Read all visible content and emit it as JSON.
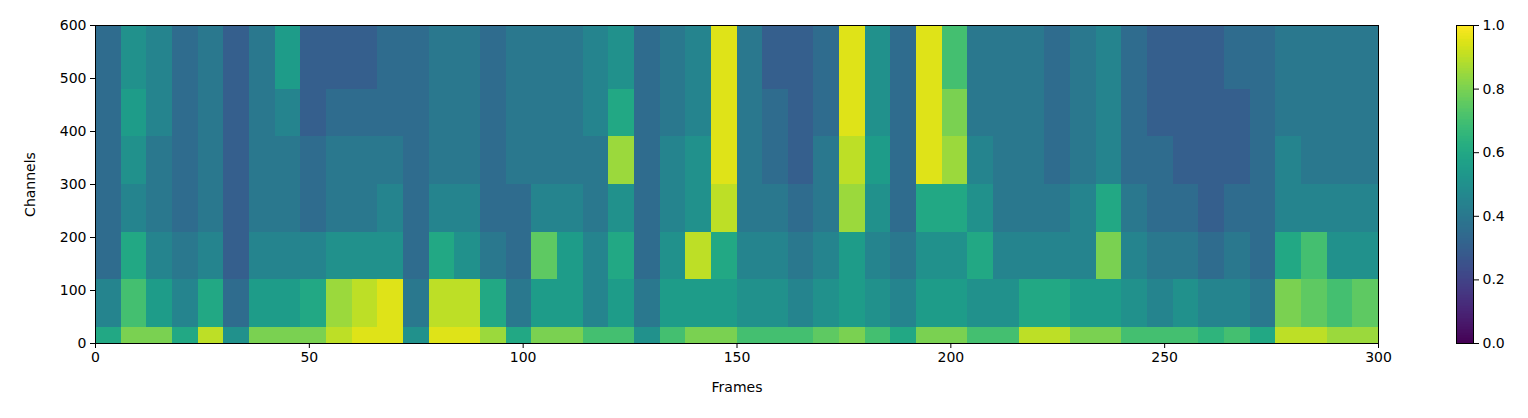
{
  "chart_data": {
    "type": "heatmap",
    "xlabel": "Frames",
    "ylabel": "Channels",
    "xlim": [
      0,
      300
    ],
    "ylim": [
      0,
      600
    ],
    "xticks": [
      0,
      50,
      100,
      150,
      200,
      250,
      300
    ],
    "yticks": [
      0,
      100,
      200,
      300,
      400,
      500,
      600
    ],
    "color": "viridis",
    "x_bins": [
      0,
      6,
      12,
      18,
      24,
      30,
      36,
      42,
      48,
      54,
      60,
      66,
      72,
      78,
      84,
      90,
      96,
      102,
      108,
      114,
      120,
      126,
      132,
      138,
      144,
      150,
      156,
      162,
      168,
      174,
      180,
      186,
      192,
      198,
      204,
      210,
      216,
      222,
      228,
      234,
      240,
      246,
      252,
      258,
      264,
      270,
      276,
      282,
      288,
      294,
      300
    ],
    "y_bins": [
      0,
      30,
      60,
      90,
      120,
      150,
      180,
      210,
      240,
      270,
      300,
      330,
      360,
      390,
      420,
      450,
      480,
      510,
      540,
      570,
      600
    ],
    "cells": [
      [
        0.6,
        0.8,
        0.8,
        0.6,
        0.9,
        0.5,
        0.8,
        0.8,
        0.8,
        0.9,
        0.95,
        0.95,
        0.5,
        0.95,
        0.95,
        0.85,
        0.6,
        0.8,
        0.8,
        0.7,
        0.7,
        0.5,
        0.7,
        0.8,
        0.8,
        0.7,
        0.7,
        0.7,
        0.75,
        0.8,
        0.7,
        0.6,
        0.8,
        0.8,
        0.7,
        0.7,
        0.9,
        0.9,
        0.8,
        0.8,
        0.7,
        0.7,
        0.7,
        0.65,
        0.7,
        0.6,
        0.9,
        0.9,
        0.85,
        0.85
      ],
      [
        0.45,
        0.7,
        0.55,
        0.45,
        0.6,
        0.35,
        0.55,
        0.55,
        0.6,
        0.85,
        0.9,
        0.95,
        0.4,
        0.9,
        0.9,
        0.6,
        0.4,
        0.55,
        0.55,
        0.45,
        0.55,
        0.4,
        0.55,
        0.55,
        0.55,
        0.5,
        0.5,
        0.45,
        0.5,
        0.55,
        0.5,
        0.45,
        0.55,
        0.55,
        0.5,
        0.5,
        0.6,
        0.6,
        0.55,
        0.55,
        0.5,
        0.45,
        0.5,
        0.45,
        0.45,
        0.4,
        0.8,
        0.75,
        0.7,
        0.75
      ],
      [
        0.45,
        0.7,
        0.55,
        0.45,
        0.6,
        0.35,
        0.55,
        0.55,
        0.6,
        0.85,
        0.9,
        0.95,
        0.4,
        0.9,
        0.9,
        0.6,
        0.4,
        0.55,
        0.55,
        0.45,
        0.55,
        0.4,
        0.55,
        0.55,
        0.55,
        0.5,
        0.5,
        0.45,
        0.5,
        0.55,
        0.5,
        0.45,
        0.55,
        0.55,
        0.5,
        0.5,
        0.6,
        0.6,
        0.55,
        0.55,
        0.5,
        0.45,
        0.5,
        0.45,
        0.45,
        0.4,
        0.8,
        0.75,
        0.7,
        0.75
      ],
      [
        0.45,
        0.7,
        0.55,
        0.45,
        0.6,
        0.35,
        0.55,
        0.55,
        0.6,
        0.85,
        0.9,
        0.95,
        0.4,
        0.9,
        0.9,
        0.6,
        0.4,
        0.55,
        0.55,
        0.45,
        0.55,
        0.4,
        0.55,
        0.55,
        0.55,
        0.5,
        0.5,
        0.45,
        0.5,
        0.55,
        0.5,
        0.45,
        0.55,
        0.55,
        0.5,
        0.5,
        0.6,
        0.6,
        0.55,
        0.55,
        0.5,
        0.45,
        0.5,
        0.45,
        0.45,
        0.4,
        0.8,
        0.75,
        0.7,
        0.75
      ],
      [
        0.35,
        0.6,
        0.45,
        0.4,
        0.45,
        0.3,
        0.45,
        0.45,
        0.45,
        0.5,
        0.5,
        0.5,
        0.35,
        0.6,
        0.5,
        0.4,
        0.35,
        0.75,
        0.55,
        0.45,
        0.6,
        0.35,
        0.5,
        0.9,
        0.6,
        0.45,
        0.45,
        0.4,
        0.45,
        0.55,
        0.45,
        0.4,
        0.5,
        0.5,
        0.6,
        0.45,
        0.45,
        0.45,
        0.45,
        0.8,
        0.45,
        0.4,
        0.4,
        0.35,
        0.4,
        0.35,
        0.6,
        0.7,
        0.5,
        0.5
      ],
      [
        0.35,
        0.6,
        0.45,
        0.4,
        0.45,
        0.3,
        0.45,
        0.45,
        0.45,
        0.5,
        0.5,
        0.5,
        0.35,
        0.6,
        0.5,
        0.4,
        0.35,
        0.75,
        0.55,
        0.45,
        0.6,
        0.35,
        0.5,
        0.9,
        0.6,
        0.45,
        0.45,
        0.4,
        0.45,
        0.55,
        0.45,
        0.4,
        0.5,
        0.5,
        0.6,
        0.45,
        0.45,
        0.45,
        0.45,
        0.8,
        0.45,
        0.4,
        0.4,
        0.35,
        0.4,
        0.35,
        0.6,
        0.7,
        0.5,
        0.5
      ],
      [
        0.35,
        0.6,
        0.45,
        0.4,
        0.45,
        0.3,
        0.45,
        0.45,
        0.45,
        0.5,
        0.5,
        0.5,
        0.35,
        0.6,
        0.5,
        0.4,
        0.35,
        0.75,
        0.55,
        0.45,
        0.6,
        0.35,
        0.5,
        0.9,
        0.6,
        0.45,
        0.45,
        0.4,
        0.45,
        0.55,
        0.45,
        0.4,
        0.5,
        0.5,
        0.6,
        0.45,
        0.45,
        0.45,
        0.45,
        0.8,
        0.45,
        0.4,
        0.4,
        0.35,
        0.4,
        0.35,
        0.6,
        0.7,
        0.5,
        0.5
      ],
      [
        0.35,
        0.45,
        0.4,
        0.35,
        0.4,
        0.3,
        0.4,
        0.4,
        0.35,
        0.4,
        0.4,
        0.45,
        0.35,
        0.45,
        0.45,
        0.35,
        0.35,
        0.45,
        0.45,
        0.4,
        0.5,
        0.35,
        0.45,
        0.5,
        0.9,
        0.4,
        0.4,
        0.35,
        0.4,
        0.85,
        0.5,
        0.35,
        0.6,
        0.6,
        0.5,
        0.4,
        0.4,
        0.4,
        0.45,
        0.6,
        0.4,
        0.35,
        0.35,
        0.3,
        0.35,
        0.35,
        0.45,
        0.45,
        0.45,
        0.45
      ],
      [
        0.35,
        0.45,
        0.4,
        0.35,
        0.4,
        0.3,
        0.4,
        0.4,
        0.35,
        0.4,
        0.4,
        0.45,
        0.35,
        0.45,
        0.45,
        0.35,
        0.35,
        0.45,
        0.45,
        0.4,
        0.5,
        0.35,
        0.45,
        0.5,
        0.9,
        0.4,
        0.4,
        0.35,
        0.4,
        0.85,
        0.5,
        0.35,
        0.6,
        0.6,
        0.5,
        0.4,
        0.4,
        0.4,
        0.45,
        0.6,
        0.4,
        0.35,
        0.35,
        0.3,
        0.35,
        0.35,
        0.45,
        0.45,
        0.45,
        0.45
      ],
      [
        0.35,
        0.45,
        0.4,
        0.35,
        0.4,
        0.3,
        0.4,
        0.4,
        0.35,
        0.4,
        0.4,
        0.45,
        0.35,
        0.45,
        0.45,
        0.35,
        0.35,
        0.45,
        0.45,
        0.4,
        0.5,
        0.35,
        0.45,
        0.5,
        0.9,
        0.4,
        0.4,
        0.35,
        0.4,
        0.85,
        0.5,
        0.35,
        0.6,
        0.6,
        0.5,
        0.4,
        0.4,
        0.4,
        0.45,
        0.6,
        0.4,
        0.35,
        0.35,
        0.3,
        0.35,
        0.35,
        0.45,
        0.45,
        0.45,
        0.45
      ],
      [
        0.35,
        0.5,
        0.4,
        0.35,
        0.4,
        0.3,
        0.4,
        0.4,
        0.35,
        0.4,
        0.4,
        0.4,
        0.35,
        0.4,
        0.4,
        0.35,
        0.4,
        0.4,
        0.4,
        0.4,
        0.85,
        0.35,
        0.45,
        0.5,
        0.95,
        0.4,
        0.35,
        0.3,
        0.4,
        0.9,
        0.55,
        0.35,
        0.95,
        0.85,
        0.45,
        0.4,
        0.4,
        0.35,
        0.4,
        0.45,
        0.35,
        0.35,
        0.3,
        0.3,
        0.3,
        0.35,
        0.45,
        0.4,
        0.4,
        0.4
      ],
      [
        0.35,
        0.5,
        0.4,
        0.35,
        0.4,
        0.3,
        0.4,
        0.4,
        0.35,
        0.4,
        0.4,
        0.4,
        0.35,
        0.4,
        0.4,
        0.35,
        0.4,
        0.4,
        0.4,
        0.4,
        0.85,
        0.35,
        0.45,
        0.5,
        0.95,
        0.4,
        0.35,
        0.3,
        0.4,
        0.9,
        0.55,
        0.35,
        0.95,
        0.85,
        0.45,
        0.4,
        0.4,
        0.35,
        0.4,
        0.45,
        0.35,
        0.35,
        0.3,
        0.3,
        0.3,
        0.35,
        0.45,
        0.4,
        0.4,
        0.4
      ],
      [
        0.35,
        0.5,
        0.4,
        0.35,
        0.4,
        0.3,
        0.4,
        0.4,
        0.35,
        0.4,
        0.4,
        0.4,
        0.35,
        0.4,
        0.4,
        0.35,
        0.4,
        0.4,
        0.4,
        0.4,
        0.85,
        0.35,
        0.45,
        0.5,
        0.95,
        0.4,
        0.35,
        0.3,
        0.4,
        0.9,
        0.55,
        0.35,
        0.95,
        0.85,
        0.45,
        0.4,
        0.4,
        0.35,
        0.4,
        0.45,
        0.35,
        0.35,
        0.3,
        0.3,
        0.3,
        0.35,
        0.45,
        0.4,
        0.4,
        0.4
      ],
      [
        0.35,
        0.55,
        0.45,
        0.35,
        0.4,
        0.3,
        0.4,
        0.45,
        0.3,
        0.35,
        0.35,
        0.35,
        0.35,
        0.4,
        0.4,
        0.35,
        0.4,
        0.4,
        0.4,
        0.45,
        0.6,
        0.35,
        0.4,
        0.45,
        0.95,
        0.4,
        0.35,
        0.3,
        0.35,
        0.95,
        0.5,
        0.35,
        0.95,
        0.8,
        0.4,
        0.4,
        0.4,
        0.35,
        0.4,
        0.45,
        0.35,
        0.3,
        0.3,
        0.3,
        0.3,
        0.35,
        0.4,
        0.4,
        0.4,
        0.4
      ],
      [
        0.35,
        0.55,
        0.45,
        0.35,
        0.4,
        0.3,
        0.4,
        0.45,
        0.3,
        0.35,
        0.35,
        0.35,
        0.35,
        0.4,
        0.4,
        0.35,
        0.4,
        0.4,
        0.4,
        0.45,
        0.6,
        0.35,
        0.4,
        0.45,
        0.95,
        0.4,
        0.35,
        0.3,
        0.35,
        0.95,
        0.5,
        0.35,
        0.95,
        0.8,
        0.4,
        0.4,
        0.4,
        0.35,
        0.4,
        0.45,
        0.35,
        0.3,
        0.3,
        0.3,
        0.3,
        0.35,
        0.4,
        0.4,
        0.4,
        0.4
      ],
      [
        0.35,
        0.55,
        0.45,
        0.35,
        0.4,
        0.3,
        0.4,
        0.45,
        0.3,
        0.35,
        0.35,
        0.35,
        0.35,
        0.4,
        0.4,
        0.35,
        0.4,
        0.4,
        0.4,
        0.45,
        0.6,
        0.35,
        0.4,
        0.45,
        0.95,
        0.4,
        0.35,
        0.3,
        0.35,
        0.95,
        0.5,
        0.35,
        0.95,
        0.8,
        0.4,
        0.4,
        0.4,
        0.35,
        0.4,
        0.45,
        0.35,
        0.3,
        0.3,
        0.3,
        0.3,
        0.35,
        0.4,
        0.4,
        0.4,
        0.4
      ],
      [
        0.35,
        0.5,
        0.45,
        0.35,
        0.4,
        0.3,
        0.4,
        0.55,
        0.3,
        0.3,
        0.3,
        0.35,
        0.35,
        0.4,
        0.4,
        0.35,
        0.4,
        0.4,
        0.4,
        0.45,
        0.5,
        0.35,
        0.4,
        0.45,
        0.95,
        0.4,
        0.3,
        0.3,
        0.35,
        0.95,
        0.5,
        0.35,
        0.95,
        0.7,
        0.4,
        0.4,
        0.4,
        0.35,
        0.4,
        0.45,
        0.35,
        0.3,
        0.3,
        0.3,
        0.35,
        0.35,
        0.4,
        0.4,
        0.4,
        0.4
      ],
      [
        0.35,
        0.5,
        0.45,
        0.35,
        0.4,
        0.3,
        0.4,
        0.55,
        0.3,
        0.3,
        0.3,
        0.35,
        0.35,
        0.4,
        0.4,
        0.35,
        0.4,
        0.4,
        0.4,
        0.45,
        0.5,
        0.35,
        0.4,
        0.45,
        0.95,
        0.4,
        0.3,
        0.3,
        0.35,
        0.95,
        0.5,
        0.35,
        0.95,
        0.7,
        0.4,
        0.4,
        0.4,
        0.35,
        0.4,
        0.45,
        0.35,
        0.3,
        0.3,
        0.3,
        0.35,
        0.35,
        0.4,
        0.4,
        0.4,
        0.4
      ],
      [
        0.35,
        0.5,
        0.45,
        0.35,
        0.4,
        0.3,
        0.4,
        0.55,
        0.3,
        0.3,
        0.3,
        0.35,
        0.35,
        0.4,
        0.4,
        0.35,
        0.4,
        0.4,
        0.4,
        0.45,
        0.5,
        0.35,
        0.4,
        0.45,
        0.95,
        0.4,
        0.3,
        0.3,
        0.35,
        0.95,
        0.5,
        0.35,
        0.95,
        0.7,
        0.4,
        0.4,
        0.4,
        0.35,
        0.4,
        0.45,
        0.35,
        0.3,
        0.3,
        0.3,
        0.35,
        0.35,
        0.4,
        0.4,
        0.4,
        0.4
      ],
      [
        0.35,
        0.5,
        0.45,
        0.35,
        0.4,
        0.3,
        0.4,
        0.55,
        0.3,
        0.3,
        0.3,
        0.35,
        0.35,
        0.4,
        0.4,
        0.35,
        0.4,
        0.4,
        0.4,
        0.45,
        0.5,
        0.35,
        0.4,
        0.45,
        0.95,
        0.4,
        0.3,
        0.3,
        0.35,
        0.95,
        0.5,
        0.35,
        0.95,
        0.7,
        0.4,
        0.4,
        0.4,
        0.35,
        0.4,
        0.45,
        0.35,
        0.3,
        0.3,
        0.3,
        0.35,
        0.35,
        0.4,
        0.4,
        0.4,
        0.4
      ]
    ],
    "colorbar": {
      "range": [
        0,
        1
      ],
      "ticks": [
        {
          "value": 0,
          "label": "0.0"
        },
        0.2,
        0.4,
        0.6,
        0.8,
        {
          "value": 1,
          "label": "1.0"
        }
      ]
    }
  }
}
